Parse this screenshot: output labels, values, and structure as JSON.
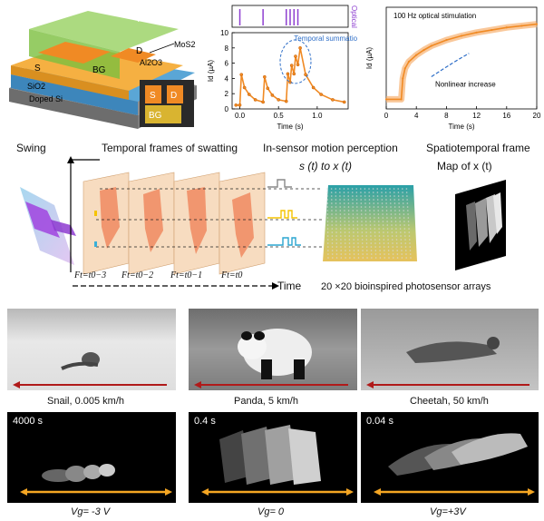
{
  "device": {
    "labels": [
      "Al2O3",
      "D",
      "MoS2",
      "S",
      "BG",
      "Al2O3",
      "SiO2",
      "Doped Si"
    ],
    "inset": {
      "s": "S",
      "d": "D",
      "bg": "BG"
    }
  },
  "chart_data": [
    {
      "type": "line",
      "title": "",
      "xlabel": "Time (s)",
      "ylabel": "Id (µA)",
      "xlim": [
        -0.1,
        1.4
      ],
      "ylim": [
        0,
        10
      ],
      "xticks": [
        "0.0",
        "0.5",
        "1.0"
      ],
      "yticks": [
        "0",
        "2",
        "4",
        "6",
        "8",
        "10"
      ],
      "pulse_label": "Optical",
      "pulse_times": [
        0.0,
        0.3,
        0.6,
        0.65,
        0.7,
        0.75
      ],
      "annotation": "Temporal summation",
      "series": [
        {
          "x": [
            -0.05,
            0.0,
            0.02,
            0.06,
            0.12,
            0.2,
            0.3,
            0.32,
            0.36,
            0.42,
            0.5,
            0.6,
            0.62,
            0.65,
            0.67,
            0.7,
            0.72,
            0.75,
            0.78,
            0.85,
            0.95,
            1.05,
            1.2,
            1.35
          ],
          "y": [
            0.5,
            0.5,
            4.5,
            2.8,
            1.9,
            1.2,
            0.9,
            4.2,
            2.7,
            1.8,
            1.2,
            1.0,
            4.6,
            3.5,
            5.7,
            4.6,
            6.9,
            5.8,
            8.0,
            4.5,
            2.8,
            1.9,
            1.2,
            0.9
          ]
        }
      ]
    },
    {
      "type": "line",
      "title": "100 Hz optical stimulation",
      "xlabel": "Time (s)",
      "ylabel": "Id (µA)",
      "xlim": [
        0,
        20
      ],
      "xticks": [
        "0",
        "4",
        "8",
        "12",
        "16",
        "20"
      ],
      "annotation": "Nonlinear increase",
      "series": [
        {
          "x": [
            0,
            2,
            2.2,
            2.5,
            3,
            4,
            5,
            6,
            8,
            10,
            12,
            14,
            16,
            18,
            20
          ],
          "y": [
            0.05,
            0.05,
            0.3,
            0.42,
            0.5,
            0.58,
            0.64,
            0.69,
            0.76,
            0.81,
            0.85,
            0.88,
            0.91,
            0.93,
            0.95
          ]
        }
      ]
    }
  ],
  "pipeline": {
    "swing_label": "Swing",
    "frames_label": "Temporal frames of swatting",
    "motion_label": "In-sensor motion perception",
    "signal_label": "s (t)  to x (t)",
    "spatio_label": "Spatiotemporal frame",
    "map_label": "Map of x (t)",
    "time_label": "Time",
    "array_label": "20 ×20 bioinspired photosensor arrays",
    "frame_labels": [
      "Ft=t0−3",
      "Ft=t0−2",
      "Ft=t0−1",
      "Ft=t0"
    ]
  },
  "animals": [
    {
      "caption": "Snail, 0.005 km/h",
      "time": "4000 s",
      "vg": "Vg= -3 V"
    },
    {
      "caption": "Panda, 5 km/h",
      "time": "0.4 s",
      "vg": "Vg= 0"
    },
    {
      "caption": "Cheetah, 50 km/h",
      "time": "0.04 s",
      "vg": "Vg=+3V"
    }
  ],
  "colors": {
    "orange": "#f08a24",
    "purple": "#8e3fd0",
    "blue": "#2f6fc8",
    "red_arrow": "#b01a1a",
    "yellow_arrow": "#f5a623"
  }
}
